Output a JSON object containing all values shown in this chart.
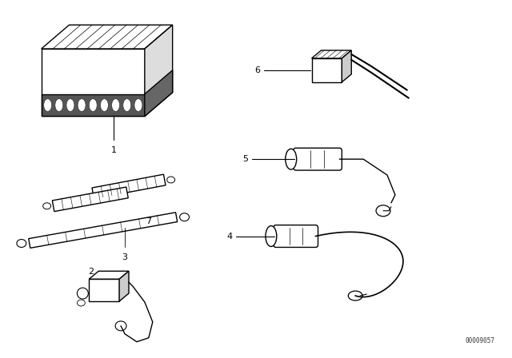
{
  "background_color": "#ffffff",
  "line_color": "#000000",
  "figure_width": 6.4,
  "figure_height": 4.48,
  "dpi": 100,
  "watermark": "00009057"
}
